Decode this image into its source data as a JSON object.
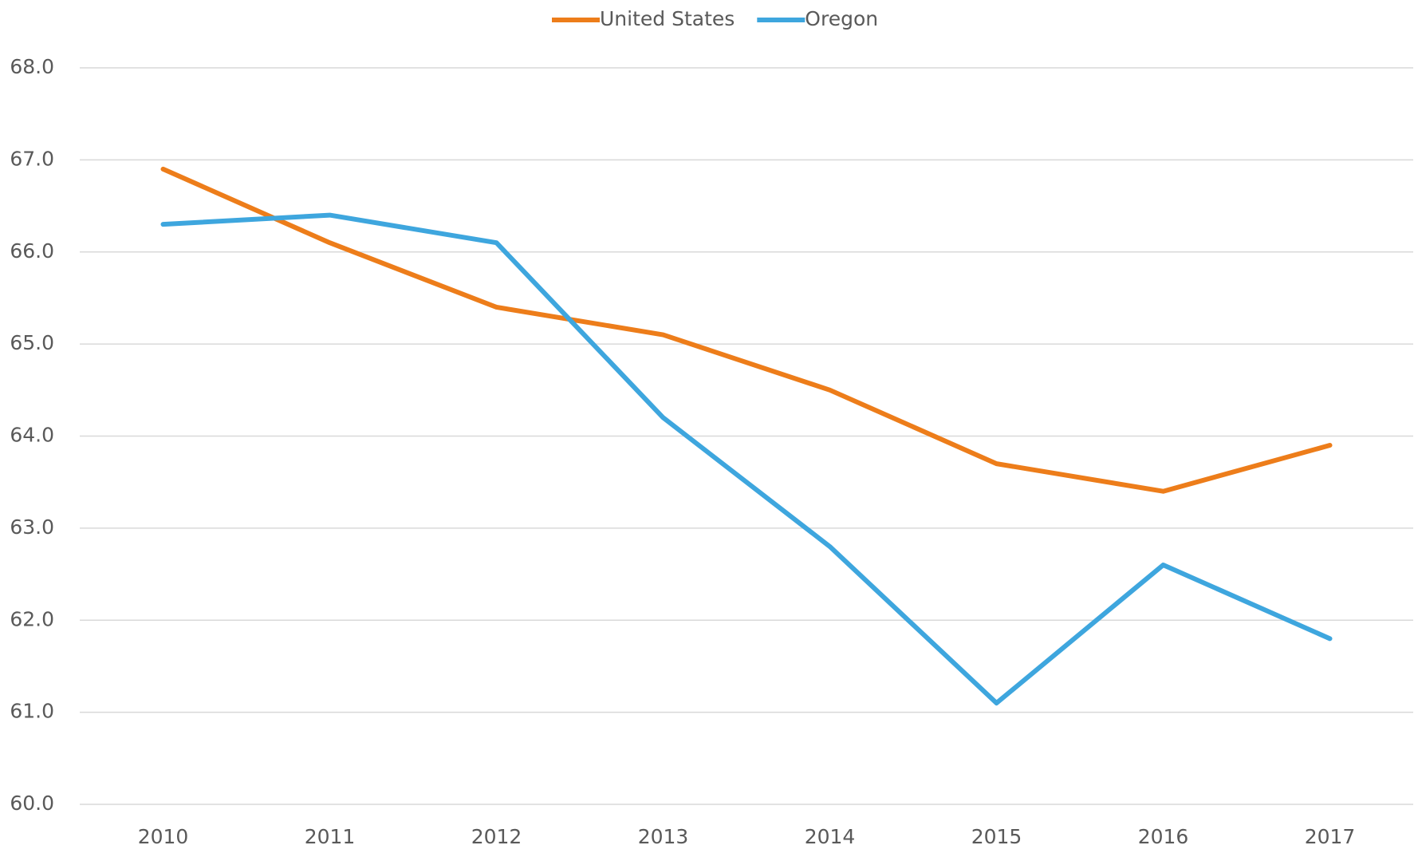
{
  "chart_data": {
    "type": "line",
    "categories": [
      "2010",
      "2011",
      "2012",
      "2013",
      "2014",
      "2015",
      "2016",
      "2017"
    ],
    "series": [
      {
        "name": "United States",
        "color": "#ed7d1a",
        "values": [
          66.9,
          66.1,
          65.4,
          65.1,
          64.5,
          63.7,
          63.4,
          63.9
        ]
      },
      {
        "name": "Oregon",
        "color": "#3ea6de",
        "values": [
          66.3,
          66.4,
          66.1,
          64.2,
          62.8,
          61.1,
          62.6,
          61.8
        ]
      }
    ],
    "ylim": [
      60,
      68
    ],
    "yticks": [
      {
        "value": 60,
        "label": "60.0"
      },
      {
        "value": 61,
        "label": "61.0"
      },
      {
        "value": 62,
        "label": "62.0"
      },
      {
        "value": 63,
        "label": "63.0"
      },
      {
        "value": 64,
        "label": "64.0"
      },
      {
        "value": 65,
        "label": "65.0"
      },
      {
        "value": 66,
        "label": "66.0"
      },
      {
        "value": 67,
        "label": "67.0"
      },
      {
        "value": 68,
        "label": "68.0"
      }
    ],
    "grid": true,
    "legend": "top"
  }
}
